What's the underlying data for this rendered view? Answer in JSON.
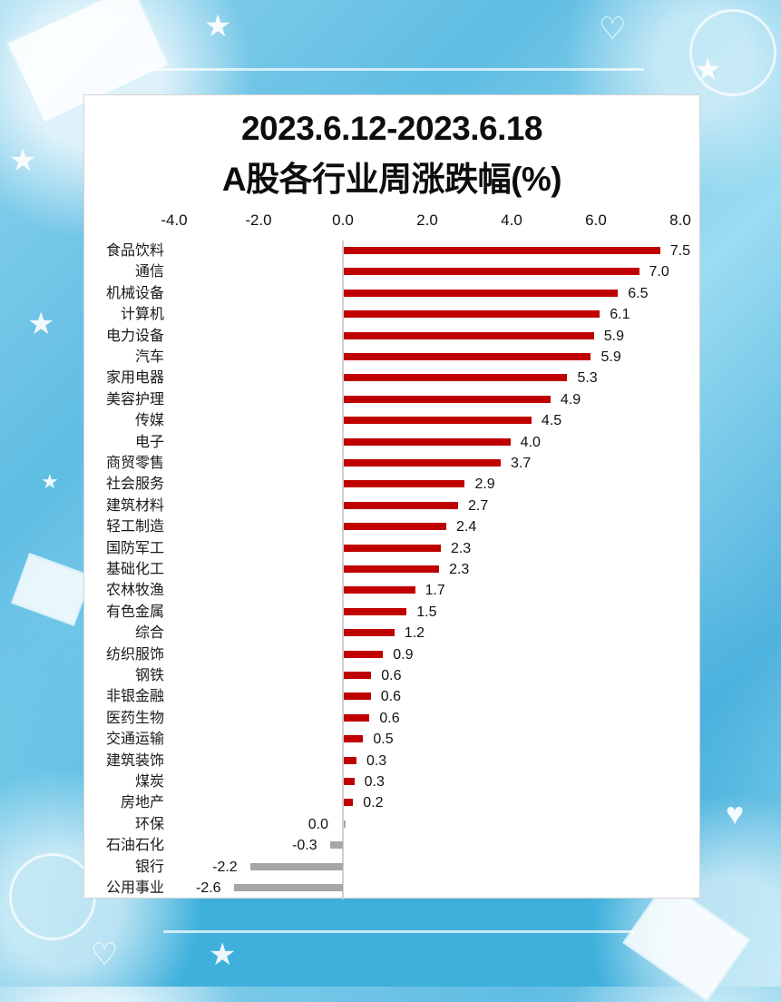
{
  "title": {
    "line1": "2023.6.12-2023.6.18",
    "line2": "A股各行业周涨跌幅(%)"
  },
  "axis": {
    "ticks": [
      "-4.0",
      "-2.0",
      "0.0",
      "2.0",
      "4.0",
      "6.0",
      "8.0"
    ]
  },
  "colors": {
    "positive": "#c00000",
    "negative": "#a6a6a6",
    "background": "#5fbde3"
  },
  "chart_data": {
    "type": "bar",
    "orientation": "horizontal",
    "title": "2023.6.12-2023.6.18 A股各行业周涨跌幅(%)",
    "xlabel": "",
    "ylabel": "",
    "xlim": [
      -4.0,
      8.0
    ],
    "xticks": [
      -4.0,
      -2.0,
      0.0,
      2.0,
      4.0,
      6.0,
      8.0
    ],
    "grid": false,
    "legend": null,
    "categories": [
      "食品饮料",
      "通信",
      "机械设备",
      "计算机",
      "电力设备",
      "汽车",
      "家用电器",
      "美容护理",
      "传媒",
      "电子",
      "商贸零售",
      "社会服务",
      "建筑材料",
      "轻工制造",
      "国防军工",
      "基础化工",
      "农林牧渔",
      "有色金属",
      "综合",
      "纺织服饰",
      "钢铁",
      "非银金融",
      "医药生物",
      "交通运输",
      "建筑装饰",
      "煤炭",
      "房地产",
      "环保",
      "石油石化",
      "银行",
      "公用事业"
    ],
    "values": [
      7.5,
      7.0,
      6.5,
      6.1,
      5.9,
      5.9,
      5.3,
      4.9,
      4.5,
      4.0,
      3.7,
      2.9,
      2.7,
      2.4,
      2.3,
      2.3,
      1.7,
      1.5,
      1.2,
      0.9,
      0.6,
      0.6,
      0.6,
      0.5,
      0.3,
      0.3,
      0.2,
      0.0,
      -0.3,
      -2.2,
      -2.6
    ],
    "labels": [
      "7.5",
      "7.0",
      "6.5",
      "6.1",
      "5.9",
      "5.9",
      "5.3",
      "4.9",
      "4.5",
      "4.0",
      "3.7",
      "2.9",
      "2.7",
      "2.4",
      "2.3",
      "2.3",
      "1.7",
      "1.5",
      "1.2",
      "0.9",
      "0.6",
      "0.6",
      "0.6",
      "0.5",
      "0.3",
      "0.3",
      "0.2",
      "0.0",
      "-0.3",
      "-2.2",
      "-2.6"
    ],
    "bar_lengths": [
      7.5,
      7.0,
      6.5,
      6.07,
      5.93,
      5.86,
      5.3,
      4.9,
      4.45,
      3.95,
      3.72,
      2.87,
      2.71,
      2.43,
      2.3,
      2.26,
      1.69,
      1.49,
      1.2,
      0.93,
      0.65,
      0.64,
      0.61,
      0.46,
      0.3,
      0.25,
      0.22,
      0.03,
      -0.31,
      -2.2,
      -2.59
    ]
  }
}
